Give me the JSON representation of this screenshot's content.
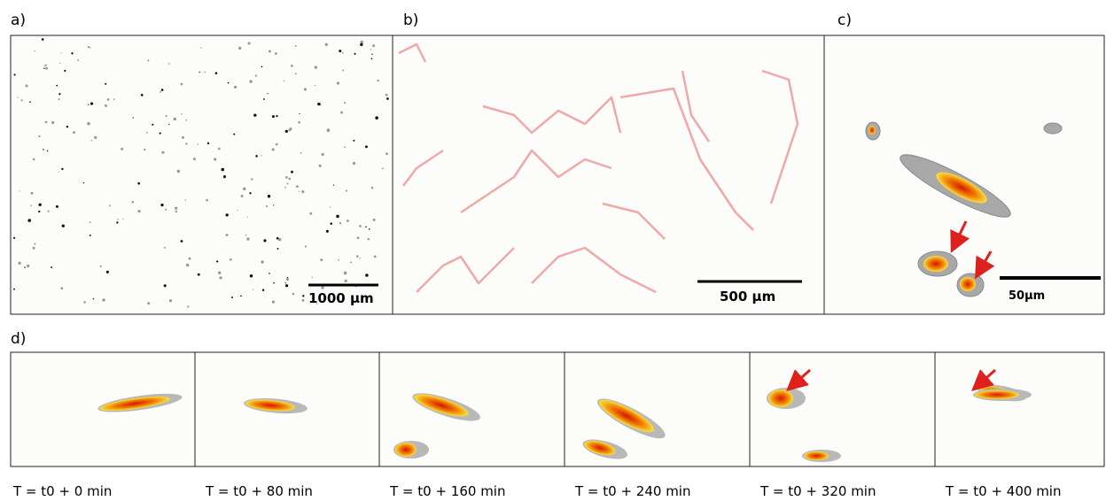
{
  "panels": [
    {
      "label": "a)",
      "scale_bar": "1000 µm"
    },
    {
      "label": "b)",
      "scale_bar": "500 µm"
    },
    {
      "label": "c)",
      "scale_bar": "50µm"
    }
  ],
  "time_series": {
    "label": "d)",
    "frames": [
      "T = t0 + 0 min",
      "T = t0 + 80 min",
      "T = t0 + 160 min",
      "T = t0 + 240 min",
      "T = t0 + 320 min",
      "T = t0 + 400 min"
    ]
  }
}
